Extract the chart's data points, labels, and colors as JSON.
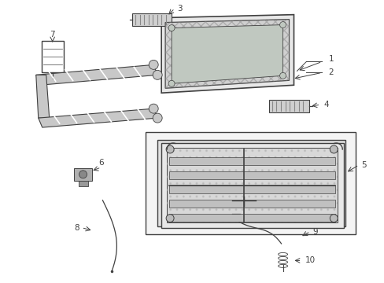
{
  "background_color": "#ffffff",
  "line_color": "#404040",
  "label_color": "#000000",
  "parts_labels": [
    1,
    2,
    3,
    4,
    5,
    6,
    7,
    8,
    9,
    10
  ]
}
